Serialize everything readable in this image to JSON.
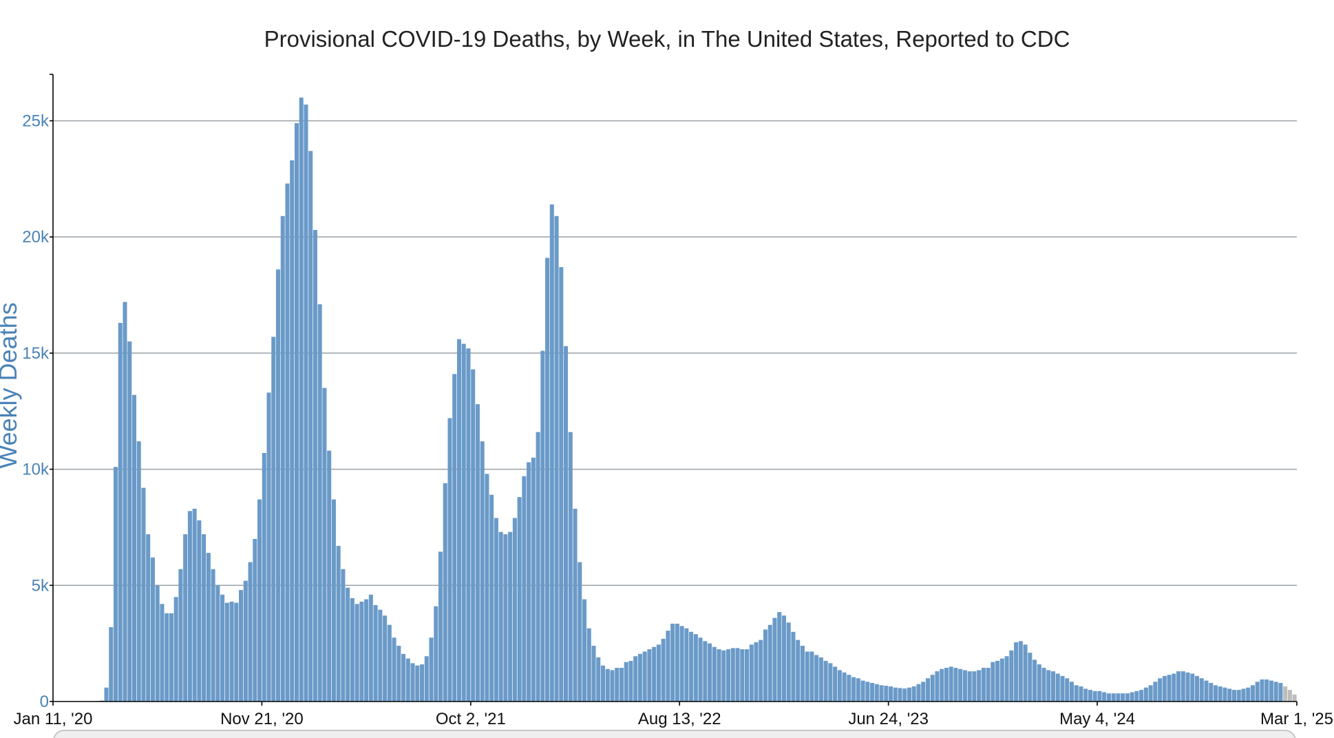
{
  "chart_data": {
    "type": "bar",
    "title": "Provisional COVID-19 Deaths, by Week, in The United States, Reported to CDC",
    "xlabel": "",
    "ylabel": "Weekly Deaths",
    "ylim": [
      0,
      27000
    ],
    "grid": true,
    "yticks": [
      {
        "value": 0,
        "label": "0"
      },
      {
        "value": 5000,
        "label": "5k"
      },
      {
        "value": 10000,
        "label": "10k"
      },
      {
        "value": 15000,
        "label": "15k"
      },
      {
        "value": 20000,
        "label": "20k"
      },
      {
        "value": 25000,
        "label": "25k"
      }
    ],
    "xticks": [
      {
        "index": 0,
        "label": "Jan 11, '20"
      },
      {
        "index": 45,
        "label": "Nov 21, '20"
      },
      {
        "index": 90,
        "label": "Oct 2, '21"
      },
      {
        "index": 135,
        "label": "Aug 13, '22"
      },
      {
        "index": 180,
        "label": "Jun 24, '23"
      },
      {
        "index": 225,
        "label": "May 4, '24"
      },
      {
        "index": 268,
        "label": "Mar 1, '25"
      }
    ],
    "series_colors": {
      "reported": "#6a9ac8",
      "provisional_incomplete": "#bdbdbd"
    },
    "start_week": "Jan 11, '20",
    "incomplete_last_weeks": 3,
    "values": [
      0,
      0,
      0,
      0,
      0,
      0,
      0,
      0,
      0,
      20,
      40,
      600,
      3200,
      10100,
      16300,
      17200,
      15500,
      13200,
      11200,
      9200,
      7200,
      6200,
      5000,
      4200,
      3800,
      3800,
      4500,
      5700,
      7200,
      8200,
      8300,
      7800,
      7200,
      6400,
      5700,
      5000,
      4600,
      4250,
      4300,
      4250,
      4800,
      5200,
      6000,
      7000,
      8700,
      10700,
      13300,
      15700,
      18600,
      20900,
      22300,
      23300,
      24900,
      26000,
      25700,
      23700,
      20300,
      17100,
      13500,
      10800,
      8700,
      6700,
      5700,
      4900,
      4450,
      4200,
      4300,
      4400,
      4600,
      4150,
      3950,
      3700,
      3300,
      2750,
      2400,
      2050,
      1850,
      1650,
      1550,
      1600,
      1950,
      2750,
      4100,
      6450,
      9400,
      12200,
      14100,
      15600,
      15400,
      15200,
      14300,
      12800,
      11200,
      9800,
      8900,
      7900,
      7300,
      7200,
      7300,
      7900,
      8800,
      9700,
      10300,
      10500,
      11600,
      15100,
      19100,
      21400,
      20900,
      18700,
      15300,
      11600,
      8300,
      6000,
      4400,
      3150,
      2400,
      1900,
      1550,
      1400,
      1350,
      1450,
      1450,
      1700,
      1750,
      1950,
      2050,
      2150,
      2250,
      2350,
      2450,
      2700,
      3050,
      3350,
      3350,
      3250,
      3150,
      3000,
      2900,
      2750,
      2600,
      2500,
      2350,
      2250,
      2200,
      2250,
      2300,
      2300,
      2250,
      2250,
      2450,
      2550,
      2650,
      3100,
      3300,
      3600,
      3850,
      3700,
      3400,
      3000,
      2650,
      2400,
      2150,
      2150,
      2000,
      1900,
      1750,
      1650,
      1500,
      1350,
      1250,
      1150,
      1050,
      1000,
      900,
      850,
      800,
      750,
      700,
      680,
      650,
      600,
      580,
      560,
      600,
      650,
      750,
      850,
      1000,
      1150,
      1300,
      1400,
      1450,
      1500,
      1450,
      1400,
      1350,
      1300,
      1300,
      1350,
      1450,
      1450,
      1700,
      1750,
      1850,
      1950,
      2200,
      2550,
      2600,
      2450,
      2100,
      1800,
      1600,
      1450,
      1350,
      1300,
      1200,
      1100,
      1000,
      850,
      700,
      650,
      550,
      500,
      450,
      450,
      400,
      350,
      350,
      350,
      350,
      350,
      400,
      450,
      500,
      600,
      700,
      850,
      1000,
      1100,
      1150,
      1200,
      1300,
      1300,
      1250,
      1200,
      1100,
      1000,
      900,
      800,
      700,
      650,
      600,
      550,
      500,
      500,
      550,
      600,
      700,
      850,
      950,
      950,
      900,
      850,
      800,
      650,
      500,
      300
    ]
  }
}
